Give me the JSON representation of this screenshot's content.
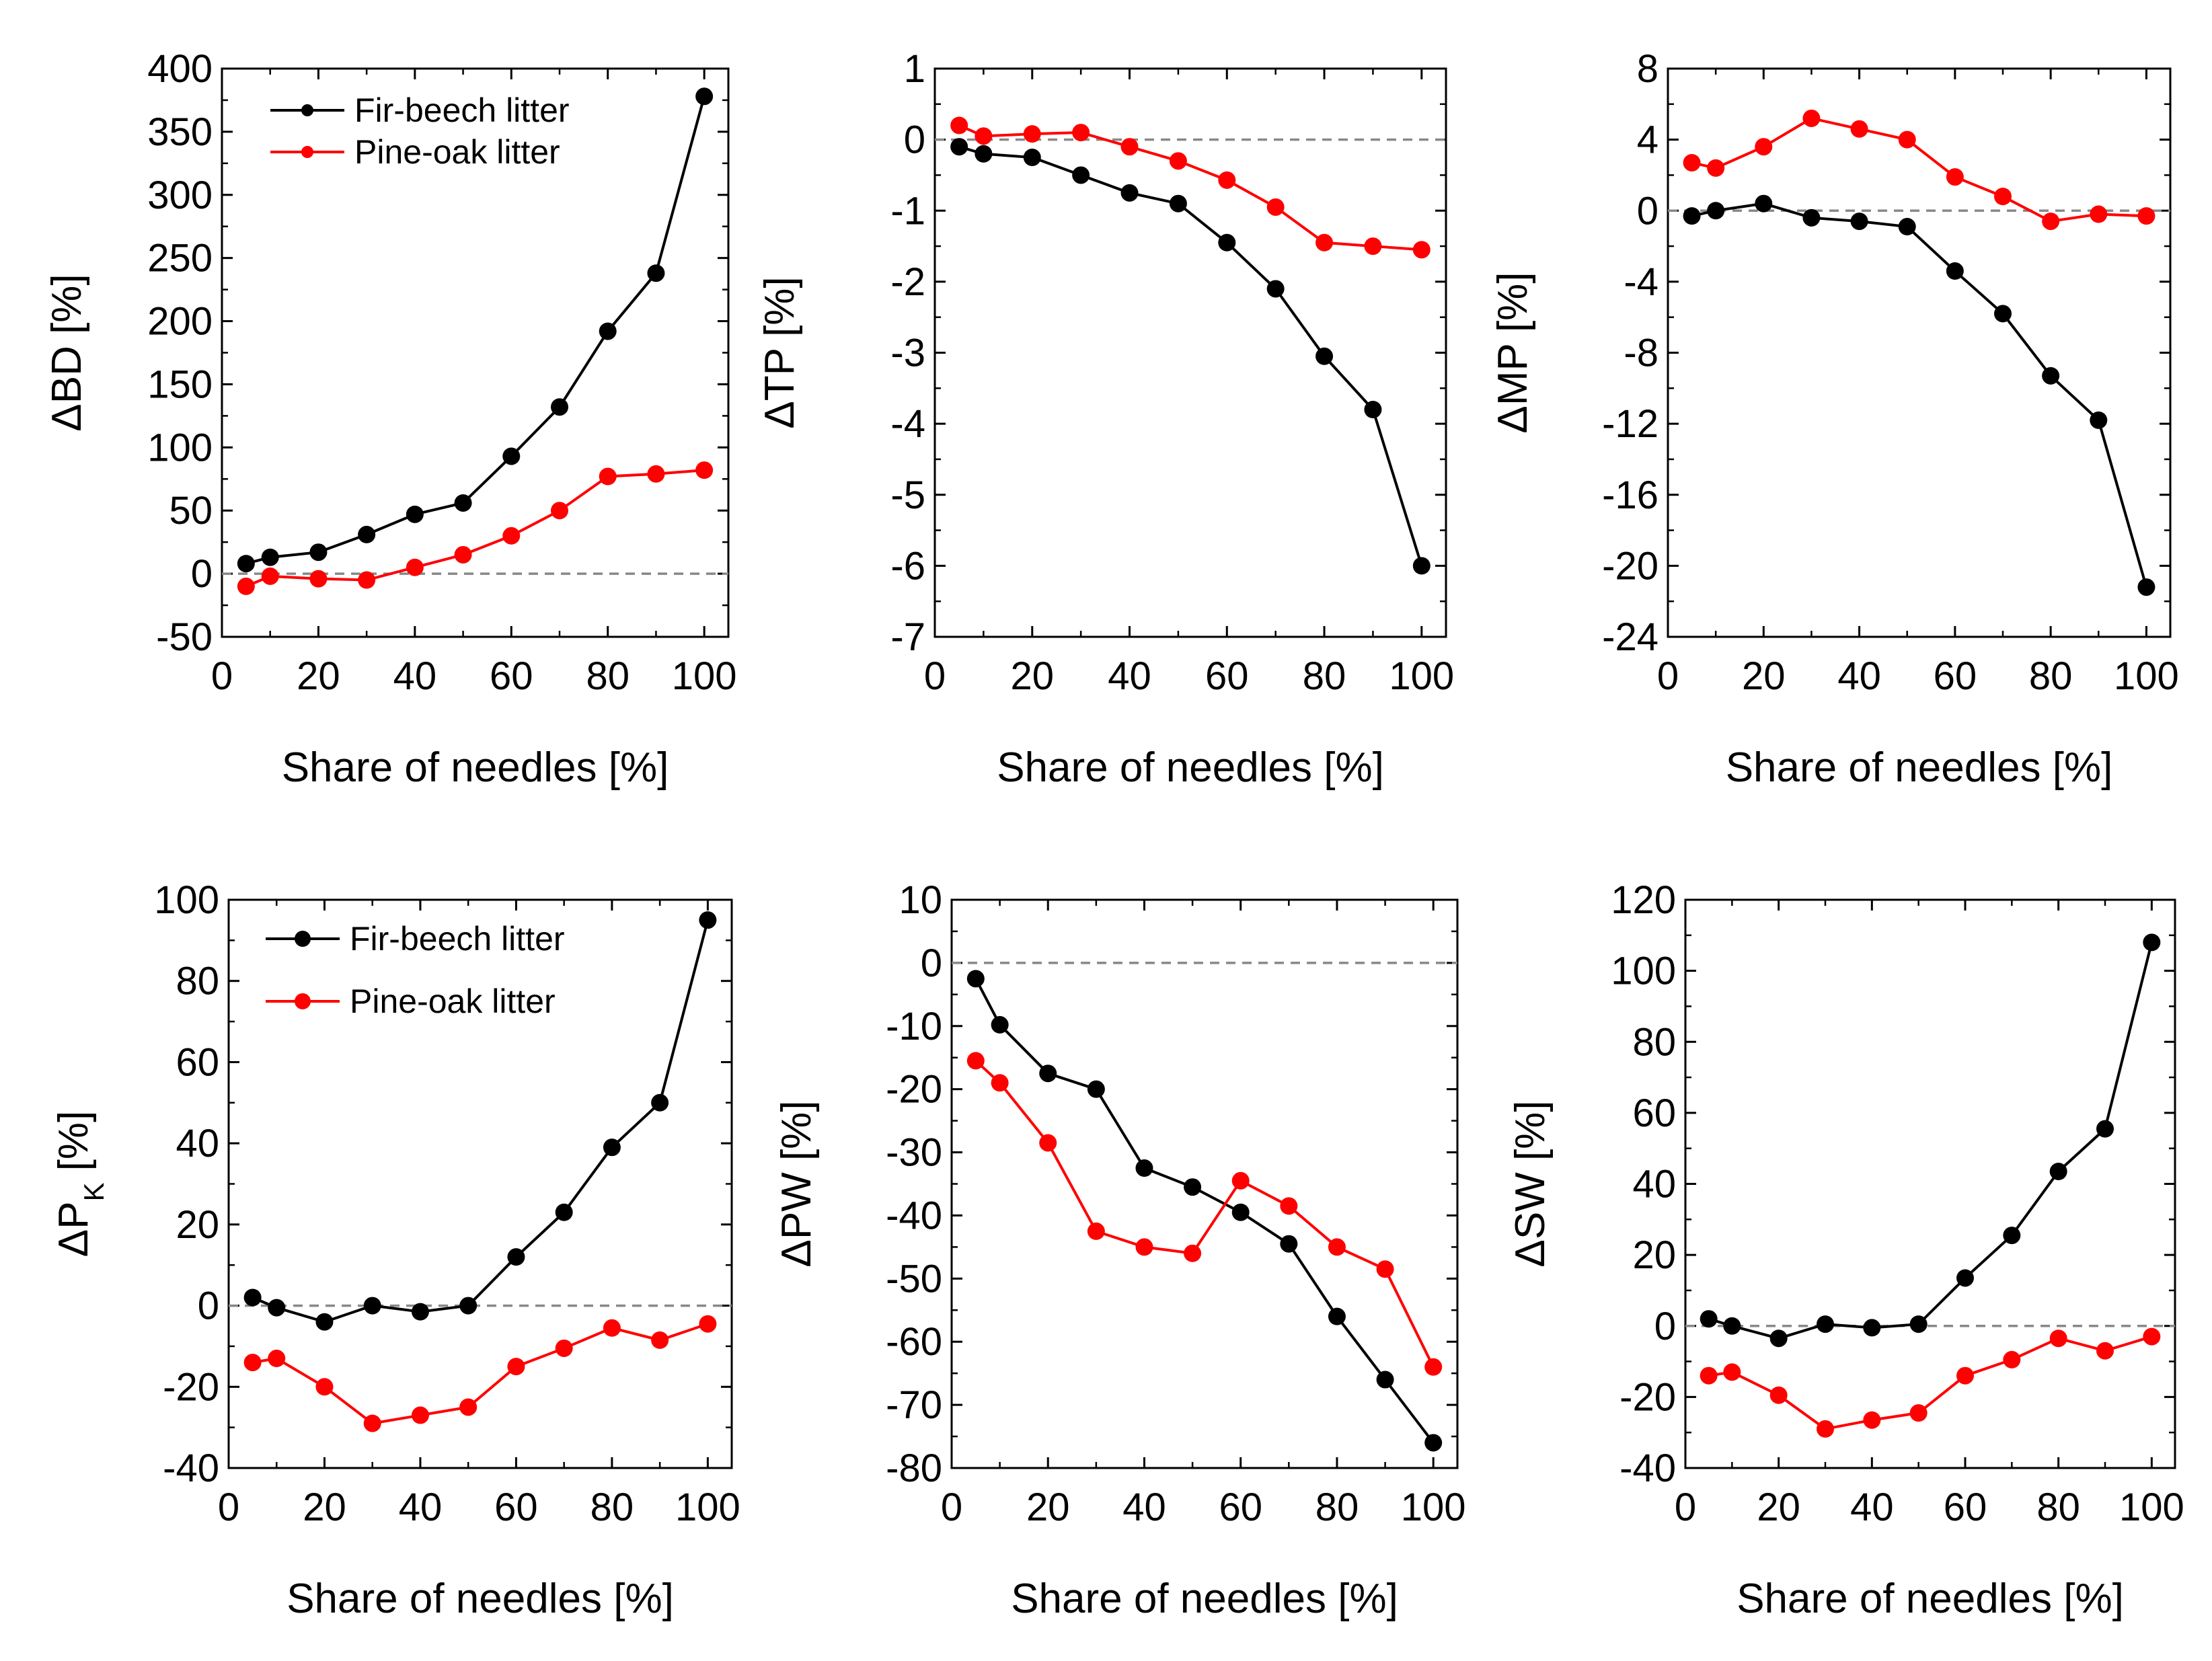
{
  "figure": {
    "panel_count": 6
  },
  "chart_data": [
    {
      "type": "line",
      "ylabel": "ΔBD [%]",
      "ylabel_main": "ΔBD",
      "ylabel_sub": "",
      "ylabel_unit": " [%]",
      "xlabel": "Share of needles [%]",
      "xlim": [
        0,
        105
      ],
      "ylim": [
        -50,
        400
      ],
      "xticks": [
        0,
        20,
        40,
        60,
        80,
        100
      ],
      "yticks": [
        -50,
        0,
        50,
        100,
        150,
        200,
        250,
        300,
        350,
        400
      ],
      "zero_line": 0,
      "legend": "top-left",
      "series": [
        {
          "name": "Fir-beech litter",
          "color": "#000000",
          "x": [
            5,
            10,
            20,
            30,
            40,
            50,
            60,
            70,
            80,
            90,
            100
          ],
          "y": [
            8,
            13,
            17,
            31,
            47,
            56,
            93,
            132,
            192,
            238,
            378
          ]
        },
        {
          "name": "Pine-oak litter",
          "color": "#ff0000",
          "x": [
            5,
            10,
            20,
            30,
            40,
            50,
            60,
            70,
            80,
            90,
            100
          ],
          "y": [
            -10,
            -2,
            -4,
            -5,
            5,
            15,
            30,
            50,
            77,
            79,
            82
          ]
        }
      ]
    },
    {
      "type": "line",
      "ylabel": "ΔTP [%]",
      "ylabel_main": "ΔTP",
      "ylabel_sub": "",
      "ylabel_unit": " [%]",
      "xlabel": "Share of needles [%]",
      "xlim": [
        0,
        105
      ],
      "ylim": [
        -7,
        1
      ],
      "xticks": [
        0,
        20,
        40,
        60,
        80,
        100
      ],
      "yticks": [
        -7,
        -6,
        -5,
        -4,
        -3,
        -2,
        -1,
        0,
        1
      ],
      "zero_line": 0,
      "legend": "none",
      "series": [
        {
          "name": "Fir-beech litter",
          "color": "#000000",
          "x": [
            5,
            10,
            20,
            30,
            40,
            50,
            60,
            70,
            80,
            90,
            100
          ],
          "y": [
            -0.1,
            -0.2,
            -0.25,
            -0.5,
            -0.75,
            -0.9,
            -1.45,
            -2.1,
            -3.05,
            -3.8,
            -6.0
          ]
        },
        {
          "name": "Pine-oak litter",
          "color": "#ff0000",
          "x": [
            5,
            10,
            20,
            30,
            40,
            50,
            60,
            70,
            80,
            90,
            100
          ],
          "y": [
            0.2,
            0.05,
            0.08,
            0.1,
            -0.1,
            -0.3,
            -0.57,
            -0.95,
            -1.45,
            -1.5,
            -1.55
          ]
        }
      ]
    },
    {
      "type": "line",
      "ylabel": "ΔMP [%]",
      "ylabel_main": "ΔMP",
      "ylabel_sub": "",
      "ylabel_unit": " [%]",
      "xlabel": "Share of needles [%]",
      "xlim": [
        0,
        105
      ],
      "ylim": [
        -24,
        8
      ],
      "xticks": [
        0,
        20,
        40,
        60,
        80,
        100
      ],
      "yticks": [
        -24,
        -20,
        -16,
        -12,
        -8,
        -4,
        0,
        4,
        8
      ],
      "zero_line": 0,
      "legend": "none",
      "series": [
        {
          "name": "Fir-beech litter",
          "color": "#000000",
          "x": [
            5,
            10,
            20,
            30,
            40,
            50,
            60,
            70,
            80,
            90,
            100
          ],
          "y": [
            -0.3,
            0,
            0.4,
            -0.4,
            -0.6,
            -0.9,
            -3.4,
            -5.8,
            -9.3,
            -11.8,
            -21.2
          ]
        },
        {
          "name": "Pine-oak litter",
          "color": "#ff0000",
          "x": [
            5,
            10,
            20,
            30,
            40,
            50,
            60,
            70,
            80,
            90,
            100
          ],
          "y": [
            2.7,
            2.4,
            3.6,
            5.2,
            4.6,
            4.0,
            1.9,
            0.8,
            -0.6,
            -0.2,
            -0.3
          ]
        }
      ]
    },
    {
      "type": "line",
      "ylabel": "ΔPK [%]",
      "ylabel_main": "ΔP",
      "ylabel_sub": "K",
      "ylabel_unit": " [%]",
      "xlabel": "Share of needles [%]",
      "xlim": [
        0,
        105
      ],
      "ylim": [
        -40,
        100
      ],
      "xticks": [
        0,
        20,
        40,
        60,
        80,
        100
      ],
      "yticks": [
        -40,
        -20,
        0,
        20,
        40,
        60,
        80,
        100
      ],
      "zero_line": 0,
      "legend": "top-left",
      "series": [
        {
          "name": "Fir-beech litter",
          "color": "#000000",
          "x": [
            5,
            10,
            20,
            30,
            40,
            50,
            60,
            70,
            80,
            90,
            100
          ],
          "y": [
            2,
            -0.5,
            -4,
            0,
            -1.5,
            0,
            12,
            23,
            39,
            50,
            95
          ]
        },
        {
          "name": "Pine-oak litter",
          "color": "#ff0000",
          "x": [
            5,
            10,
            20,
            30,
            40,
            50,
            60,
            70,
            80,
            90,
            100
          ],
          "y": [
            -14,
            -13,
            -20,
            -29,
            -27,
            -25,
            -15,
            -10.5,
            -5.5,
            -8.5,
            -4.5
          ]
        }
      ]
    },
    {
      "type": "line",
      "ylabel": "ΔPW [%]",
      "ylabel_main": "ΔPW",
      "ylabel_sub": "",
      "ylabel_unit": " [%]",
      "xlabel": "Share of needles [%]",
      "xlim": [
        0,
        105
      ],
      "ylim": [
        -80,
        10
      ],
      "xticks": [
        0,
        20,
        40,
        60,
        80,
        100
      ],
      "yticks": [
        -80,
        -70,
        -60,
        -50,
        -40,
        -30,
        -20,
        -10,
        0,
        10
      ],
      "zero_line": 0,
      "legend": "none",
      "series": [
        {
          "name": "Fir-beech litter",
          "color": "#000000",
          "x": [
            5,
            10,
            20,
            30,
            40,
            50,
            60,
            70,
            80,
            90,
            100
          ],
          "y": [
            -2.5,
            -9.8,
            -17.5,
            -20,
            -32.5,
            -35.5,
            -39.5,
            -44.5,
            -56,
            -66,
            -76
          ]
        },
        {
          "name": "Pine-oak litter",
          "color": "#ff0000",
          "x": [
            5,
            10,
            20,
            30,
            40,
            50,
            60,
            70,
            80,
            90,
            100
          ],
          "y": [
            -15.5,
            -19,
            -28.5,
            -42.5,
            -45,
            -46,
            -34.5,
            -38.5,
            -45,
            -48.5,
            -64
          ]
        }
      ]
    },
    {
      "type": "line",
      "ylabel": "ΔSW [%]",
      "ylabel_main": "ΔSW",
      "ylabel_sub": "",
      "ylabel_unit": " [%]",
      "xlabel": "Share of needles [%]",
      "xlim": [
        0,
        105
      ],
      "ylim": [
        -40,
        120
      ],
      "xticks": [
        0,
        20,
        40,
        60,
        80,
        100
      ],
      "yticks": [
        -40,
        -20,
        0,
        20,
        40,
        60,
        80,
        100,
        120
      ],
      "zero_line": 0,
      "legend": "none",
      "series": [
        {
          "name": "Fir-beech litter",
          "color": "#000000",
          "x": [
            5,
            10,
            20,
            30,
            40,
            50,
            60,
            70,
            80,
            90,
            100
          ],
          "y": [
            2,
            0,
            -3.5,
            0.5,
            -0.5,
            0.5,
            13.5,
            25.5,
            43.5,
            55.5,
            108
          ]
        },
        {
          "name": "Pine-oak litter",
          "color": "#ff0000",
          "x": [
            5,
            10,
            20,
            30,
            40,
            50,
            60,
            70,
            80,
            90,
            100
          ],
          "y": [
            -14,
            -13,
            -19.5,
            -29,
            -26.5,
            -24.5,
            -14,
            -9.5,
            -3.5,
            -7,
            -3
          ]
        }
      ]
    }
  ]
}
